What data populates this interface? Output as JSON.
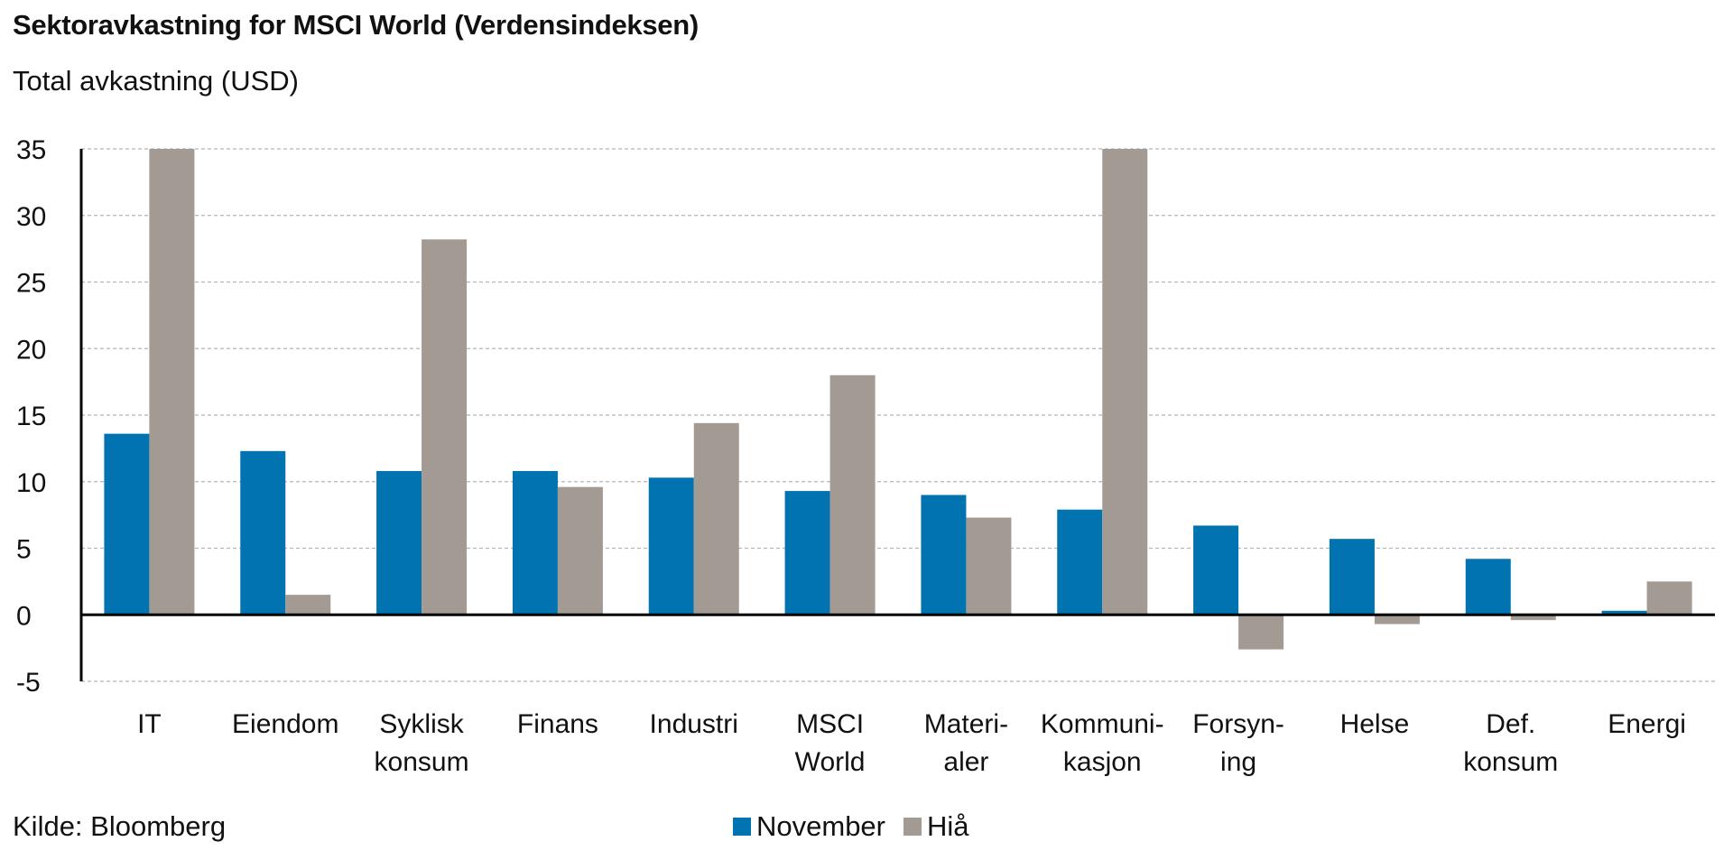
{
  "chart_data": {
    "type": "bar",
    "title": "Sektoravkastning for MSCI World (Verdensindeksen)",
    "subtitle": "Total avkastning (USD)",
    "source": "Kilde: Bloomberg",
    "categories": [
      [
        "IT"
      ],
      [
        "Eiendom"
      ],
      [
        "Syklisk",
        "konsum"
      ],
      [
        "Finans"
      ],
      [
        "Industri"
      ],
      [
        "MSCI",
        "World"
      ],
      [
        "Materi-",
        "aler"
      ],
      [
        "Kommuni-",
        "kasjon"
      ],
      [
        "Forsyn-",
        "ing"
      ],
      [
        "Helse"
      ],
      [
        "Def.",
        "konsum"
      ],
      [
        "Energi"
      ]
    ],
    "series": [
      {
        "name": "November",
        "color": "#0073b0",
        "values": [
          13.6,
          12.3,
          10.8,
          10.8,
          10.3,
          9.3,
          9.0,
          7.9,
          6.7,
          5.7,
          4.2,
          0.3
        ]
      },
      {
        "name": "Hiå",
        "color": "#a39a93",
        "values": [
          35.0,
          1.5,
          28.2,
          9.6,
          14.4,
          18.0,
          7.3,
          35.0,
          -2.6,
          -0.7,
          -0.4,
          2.5
        ]
      }
    ],
    "ylim": [
      -5,
      35
    ],
    "yticks": [
      -5,
      0,
      5,
      10,
      15,
      20,
      25,
      30,
      35
    ],
    "grid": true,
    "legend_position": "bottom-center"
  }
}
